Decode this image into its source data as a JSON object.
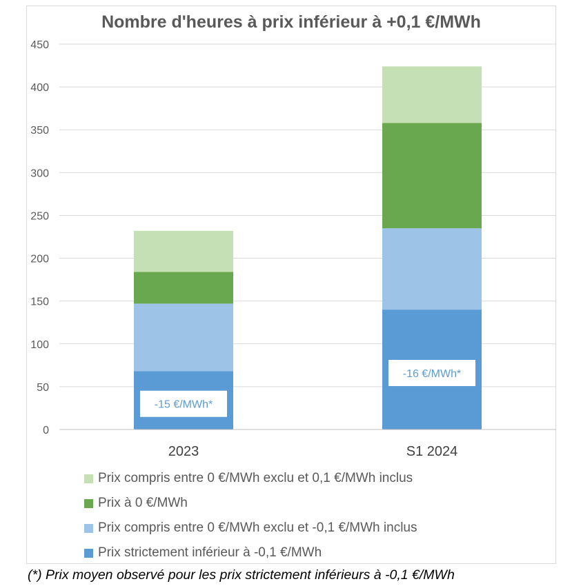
{
  "chart_data": {
    "type": "bar",
    "stacked": true,
    "title": "Nombre d'heures à prix inférieur à +0,1 €/MWh",
    "xlabel": "",
    "ylabel": "",
    "categories": [
      "2023",
      "S1 2024"
    ],
    "ylim": [
      0,
      450
    ],
    "yticks": [
      0,
      50,
      100,
      150,
      200,
      250,
      300,
      350,
      400,
      450
    ],
    "grid": true,
    "legend_position": "bottom",
    "series": [
      {
        "name": "Prix strictement inférieur à -0,1 €/MWh",
        "values": [
          68,
          140
        ],
        "color": "#5b9bd5"
      },
      {
        "name": "Prix compris entre 0 €/MWh exclu et -0,1 €/MWh inclus",
        "values": [
          79,
          95
        ],
        "color": "#9dc3e6"
      },
      {
        "name": "Prix à 0 €/MWh",
        "values": [
          37,
          123
        ],
        "color": "#6aa84f"
      },
      {
        "name": "Prix compris entre 0 €/MWh exclu et 0,1 €/MWh inclus",
        "values": [
          48,
          66
        ],
        "color": "#c5e0b4"
      }
    ],
    "annotations": [
      {
        "category": "2023",
        "value": 30,
        "text": "-15 €/MWh*"
      },
      {
        "category": "S1 2024",
        "value": 66,
        "text": "-16 €/MWh*"
      }
    ]
  },
  "legend_order": [
    3,
    2,
    1,
    0
  ],
  "footnote": "(*) Prix moyen observé pour les prix strictement inférieurs à -0,1 €/MWh"
}
